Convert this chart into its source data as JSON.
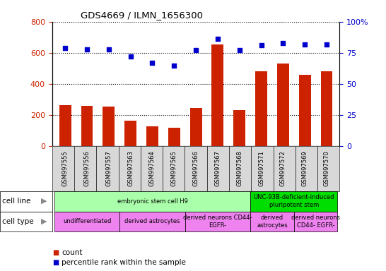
{
  "title": "GDS4669 / ILMN_1656300",
  "samples": [
    "GSM997555",
    "GSM997556",
    "GSM997557",
    "GSM997563",
    "GSM997564",
    "GSM997565",
    "GSM997566",
    "GSM997567",
    "GSM997568",
    "GSM997571",
    "GSM997572",
    "GSM997569",
    "GSM997570"
  ],
  "counts": [
    265,
    258,
    255,
    163,
    130,
    120,
    248,
    655,
    232,
    483,
    530,
    458,
    483
  ],
  "percentiles": [
    79,
    78,
    78,
    72,
    67,
    65,
    77,
    86,
    77,
    81,
    83,
    82,
    82
  ],
  "left_ylim": [
    0,
    800
  ],
  "left_yticks": [
    0,
    200,
    400,
    600,
    800
  ],
  "right_ylim": [
    0,
    100
  ],
  "right_yticks": [
    0,
    25,
    50,
    75,
    100
  ],
  "bar_color": "#cc2200",
  "dot_color": "#0000cc",
  "left_tick_color": "#cc2200",
  "right_tick_color": "#0000cc",
  "cell_line_groups": [
    {
      "text": "embryonic stem cell H9",
      "start": 0,
      "end": 8,
      "color": "#aaffaa"
    },
    {
      "text": "UNC-93B-deficient-induced\npluripotent stem",
      "start": 9,
      "end": 12,
      "color": "#00dd00"
    }
  ],
  "cell_type_groups": [
    {
      "text": "undifferentiated",
      "start": 0,
      "end": 2,
      "color": "#ee82ee"
    },
    {
      "text": "derived astrocytes",
      "start": 3,
      "end": 5,
      "color": "#ee82ee"
    },
    {
      "text": "derived neurons CD44-\nEGFR-",
      "start": 6,
      "end": 8,
      "color": "#ee82ee"
    },
    {
      "text": "derived\nastrocytes",
      "start": 9,
      "end": 10,
      "color": "#ee82ee"
    },
    {
      "text": "derived neurons\nCD44- EGFR-",
      "start": 11,
      "end": 12,
      "color": "#ee82ee"
    }
  ],
  "legend_count_label": "count",
  "legend_pct_label": "percentile rank within the sample",
  "bg_color": "#d8d8d8",
  "cell_line_label": "cell line",
  "cell_type_label": "cell type",
  "arrow_color": "#888888"
}
